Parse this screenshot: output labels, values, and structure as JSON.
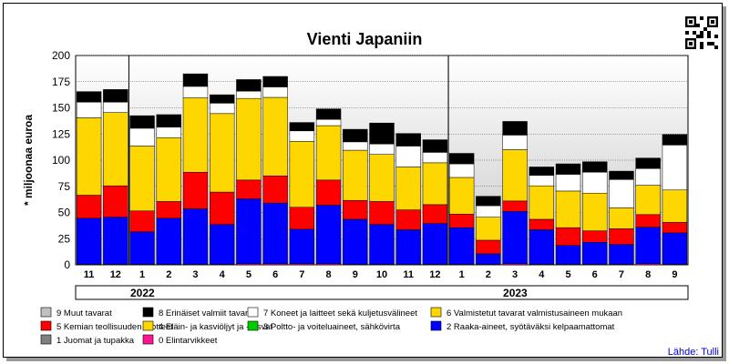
{
  "chart_data": {
    "type": "bar",
    "stacked": true,
    "title": "Vienti Japaniin",
    "ylabel": "* miljoonaa euroa",
    "xlabel": "",
    "ylim": [
      0,
      200
    ],
    "yticks": [
      0,
      25,
      50,
      75,
      100,
      125,
      150,
      175,
      200
    ],
    "grid": true,
    "categories": [
      "11",
      "12",
      "1",
      "2",
      "3",
      "4",
      "5",
      "6",
      "7",
      "8",
      "9",
      "10",
      "11",
      "12",
      "1",
      "2",
      "3",
      "4",
      "5",
      "6",
      "7",
      "8",
      "9"
    ],
    "years": [
      {
        "label": "2022",
        "start": 0,
        "end": 13
      },
      {
        "label": "2023",
        "start": 14,
        "end": 22
      }
    ],
    "legend_position": "bottom",
    "series": [
      {
        "name": "0 Elintarvikkeet",
        "color": "#ff1493",
        "values": [
          0.5,
          0.5,
          0.5,
          0.5,
          0.5,
          0.5,
          1,
          1,
          1,
          1,
          0.5,
          0.5,
          0.5,
          0.5,
          0.5,
          0.5,
          1,
          0.5,
          0.5,
          0.5,
          0.5,
          1,
          0.5
        ]
      },
      {
        "name": "1 Juomat ja tupakka",
        "color": "#808080",
        "values": [
          0,
          0,
          0,
          0,
          0,
          0,
          0,
          0,
          0,
          0,
          0,
          0,
          0,
          0,
          0,
          0,
          0,
          0,
          0,
          0,
          0,
          0,
          0
        ]
      },
      {
        "name": "2 Raaka-aineet, syötäväksi kelpaamattomat",
        "color": "#0000ff",
        "values": [
          44,
          45,
          31,
          44,
          53,
          38,
          62,
          58,
          33,
          56,
          43,
          38,
          33,
          39,
          35,
          10,
          50,
          33,
          18,
          21,
          19,
          35,
          30
        ]
      },
      {
        "name": "3 Poltto- ja voiteluaineet, sähkövirta",
        "color": "#00cc00",
        "values": [
          0,
          0,
          0,
          0,
          0,
          0,
          0,
          0,
          0,
          0,
          0,
          0,
          0,
          0,
          0,
          0,
          0,
          0,
          0,
          0,
          0,
          0,
          0
        ]
      },
      {
        "name": "5 Kemian teollisuuden tuotteet",
        "color": "#ff0000",
        "values": [
          22,
          30,
          20,
          16,
          35,
          31,
          18,
          26,
          21,
          24,
          18,
          22,
          19,
          18,
          13,
          13,
          10,
          10,
          17,
          11,
          15,
          12,
          10
        ]
      },
      {
        "name": "4 Eläin- ja kasviöljyt ja -rasvat",
        "color": "#ffd700",
        "values": [
          74,
          70,
          62,
          61,
          71,
          75,
          78,
          75,
          63,
          52,
          48,
          45,
          41,
          40,
          35,
          22,
          49,
          32,
          35,
          36,
          20,
          28,
          31
        ]
      },
      {
        "name": "6 Valmistetut tavarat valmistusaineen mukaan",
        "color": "#ffd700",
        "values": [
          0,
          0,
          0,
          0,
          0,
          0,
          0,
          0,
          0,
          0,
          0,
          0,
          0,
          0,
          0,
          0,
          0,
          0,
          0,
          0,
          0,
          0,
          0
        ]
      },
      {
        "name": "7 Koneet ja laitteet sekä kuljetusvälineet",
        "color": "#ffffff",
        "values": [
          15,
          10,
          17,
          10,
          11,
          10,
          7,
          10,
          10,
          6,
          8,
          10,
          20,
          10,
          13,
          11,
          14,
          10,
          16,
          20,
          27,
          16,
          43
        ]
      },
      {
        "name": "8 Erinäiset valmiit tavarat",
        "color": "#000000",
        "values": [
          10,
          12,
          12,
          12,
          12,
          8,
          11,
          10,
          8,
          10,
          12,
          20,
          12,
          12,
          10,
          9,
          13,
          8,
          10,
          10,
          8,
          10,
          10
        ]
      },
      {
        "name": "9 Muut tavarat",
        "color": "#c0c0c0",
        "values": [
          0,
          0,
          0,
          0,
          0,
          0,
          0,
          0,
          0,
          0,
          0,
          0,
          0,
          0,
          0,
          0,
          0,
          0,
          0,
          0,
          0,
          0,
          0
        ]
      }
    ],
    "legend_order": [
      "9 Muut tavarat",
      "8 Erinäiset valmiit tavarat",
      "7 Koneet ja laitteet sekä kuljetusvälineet",
      "6 Valmistetut tavarat valmistusaineen mukaan",
      "5 Kemian teollisuuden tuotteet",
      "4 Eläin- ja kasviöljyt ja -rasvat",
      "3 Poltto- ja voiteluaineet, sähkövirta",
      "2 Raaka-aineet, syötäväksi kelpaamattomat",
      "1 Juomat ja tupakka",
      "0 Elintarvikkeet"
    ],
    "legend_colors": {
      "9 Muut tavarat": "#c0c0c0",
      "8 Erinäiset valmiit tavarat": "#000000",
      "7 Koneet ja laitteet sekä kuljetusvälineet": "#ffffff",
      "6 Valmistetut tavarat valmistusaineen mukaan": "#ffd700",
      "5 Kemian teollisuuden tuotteet": "#ff0000",
      "4 Eläin- ja kasviöljyt ja -rasvat": "#ffd700",
      "3 Poltto- ja voiteluaineet, sähkövirta": "#00cc00",
      "2 Raaka-aineet, syötäväksi kelpaamattomat": "#0000ff",
      "1 Juomat ja tupakka": "#808080",
      "0 Elintarvikkeet": "#ff1493"
    }
  },
  "source": "Lähde: Tulli",
  "qr_icon": "qr-code-icon"
}
